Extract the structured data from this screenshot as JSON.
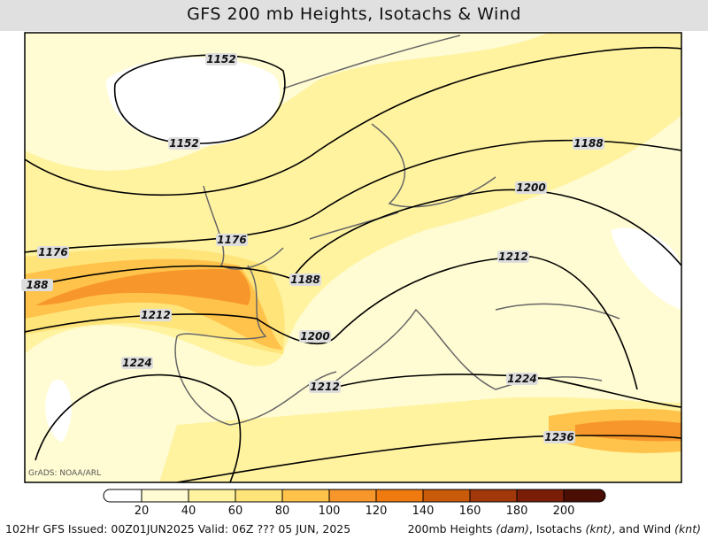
{
  "header": {
    "title": "GFS 200 mb Heights, Isotachs & Wind"
  },
  "map": {
    "credit": "GrADS: NOAA/ARL",
    "contour_labels": [
      "1152",
      "1152",
      "1188",
      "1200",
      "1176",
      "1176",
      "188",
      "1188",
      "1212",
      "1212",
      "1200",
      "1224",
      "1212",
      "1224",
      "1236"
    ]
  },
  "colorbar": {
    "ticks": [
      "20",
      "40",
      "60",
      "80",
      "100",
      "120",
      "140",
      "160",
      "180",
      "200"
    ],
    "colors": [
      "#ffffff",
      "#fffbd2",
      "#fff3a0",
      "#ffe47a",
      "#ffc24a",
      "#f7962a",
      "#ee7a10",
      "#c85a0a",
      "#a0380a",
      "#7a1e08",
      "#4a0e04"
    ]
  },
  "footer": {
    "left": "102Hr GFS Issued: 00Z01JUN2025 Valid: 06Z ??? 05 JUN, 2025",
    "right": [
      "200mb Heights ",
      "(dam)",
      ", Isotachs ",
      "(knt)",
      ", and Wind ",
      "(knt)"
    ]
  }
}
